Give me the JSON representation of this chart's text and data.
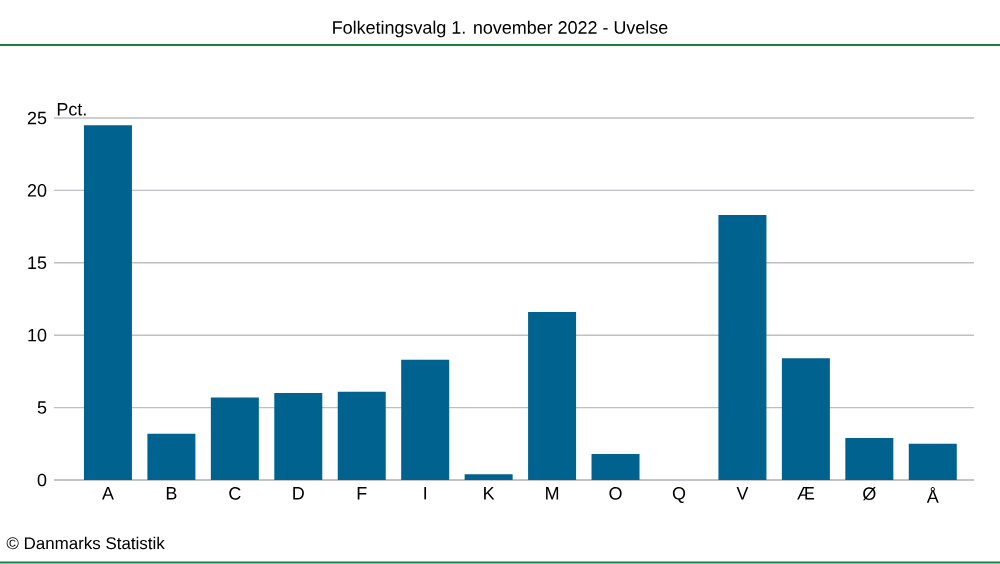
{
  "chart_data": {
    "type": "bar",
    "title": "Folketingsvalg 1. november 2022 - Uvelse",
    "ylabel": "Pct.",
    "categories": [
      "A",
      "B",
      "C",
      "D",
      "F",
      "I",
      "K",
      "M",
      "O",
      "Q",
      "V",
      "Æ",
      "Ø",
      "Å"
    ],
    "values": [
      24.5,
      3.2,
      5.7,
      6.0,
      6.1,
      8.3,
      0.4,
      11.6,
      1.8,
      0,
      18.3,
      8.4,
      2.9,
      2.5
    ],
    "color": "#00628f",
    "ylim": [
      0,
      25
    ],
    "yticks": [
      0,
      5,
      10,
      15,
      20,
      25
    ],
    "grid": "y",
    "annotations": [
      "© Danmarks Statistik"
    ]
  }
}
